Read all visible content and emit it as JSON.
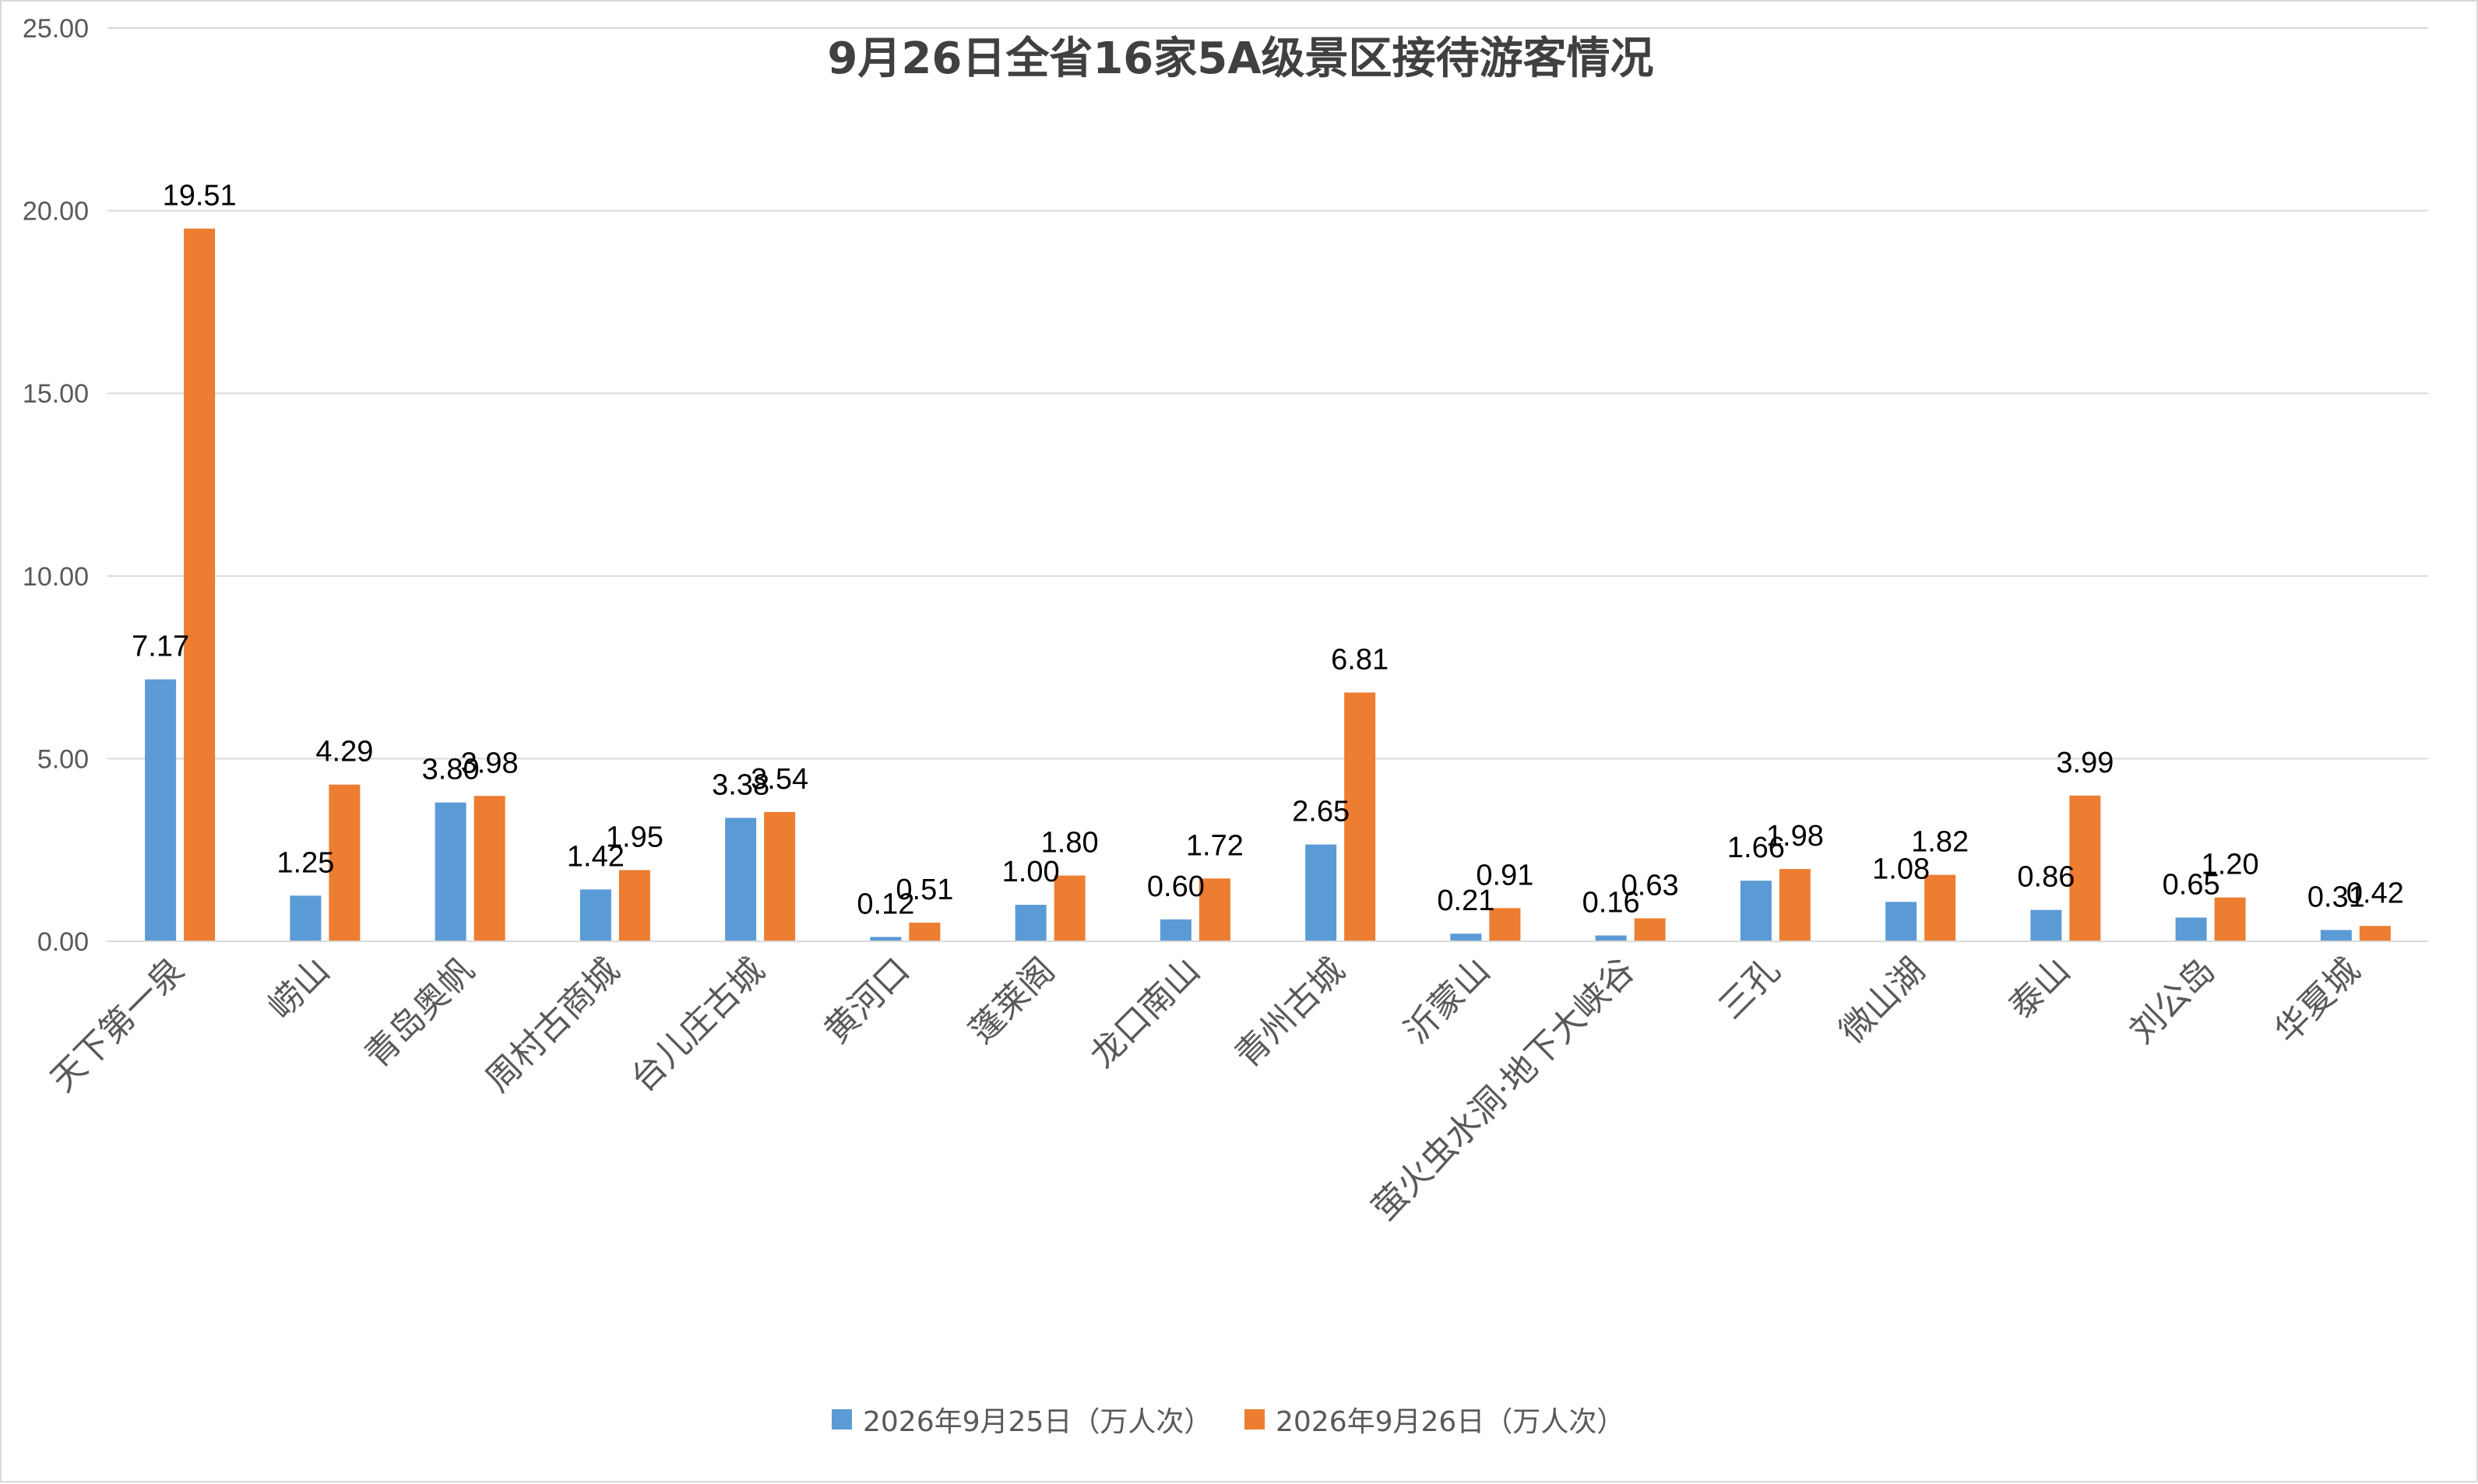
{
  "chart_data": {
    "type": "bar",
    "title": "9月26日全省16家5A级景区接待游客情况",
    "xlabel": "",
    "ylabel": "",
    "ylim": [
      0,
      25
    ],
    "y_ticks": [
      "0.00",
      "5.00",
      "10.00",
      "15.00",
      "20.00",
      "25.00"
    ],
    "grid": true,
    "legend_position": "bottom",
    "categories": [
      "天下第一泉",
      "崂山",
      "青岛奥帆",
      "周村古商城",
      "台儿庄古城",
      "黄河口",
      "蓬莱阁",
      "龙口南山",
      "青州古城",
      "沂蒙山",
      "萤火虫水洞·地下大峡谷",
      "三孔",
      "微山湖",
      "泰山",
      "刘公岛",
      "华夏城"
    ],
    "series": [
      {
        "name": "2026年9月25日（万人次）",
        "color": "#5b9bd5",
        "values": [
          7.17,
          1.25,
          3.8,
          1.42,
          3.38,
          0.12,
          1.0,
          0.6,
          2.65,
          0.21,
          0.16,
          1.66,
          1.08,
          0.86,
          0.65,
          0.31
        ],
        "labels": [
          "7.17",
          "1.25",
          "3.80",
          "1.42",
          "3.38",
          "0.12",
          "1.00",
          "0.60",
          "2.65",
          "0.21",
          "0.16",
          "1.66",
          "1.08",
          "0.86",
          "0.65",
          "0.31"
        ]
      },
      {
        "name": "2026年9月26日（万人次）",
        "color": "#ed7d31",
        "values": [
          19.51,
          4.29,
          3.98,
          1.95,
          3.54,
          0.51,
          1.8,
          1.72,
          6.81,
          0.91,
          0.63,
          1.98,
          1.82,
          3.99,
          1.2,
          0.42
        ],
        "labels": [
          "19.51",
          "4.29",
          "3.98",
          "1.95",
          "3.54",
          "0.51",
          "1.80",
          "1.72",
          "6.81",
          "0.91",
          "0.63",
          "1.98",
          "1.82",
          "3.99",
          "1.20",
          "0.42"
        ]
      }
    ]
  }
}
